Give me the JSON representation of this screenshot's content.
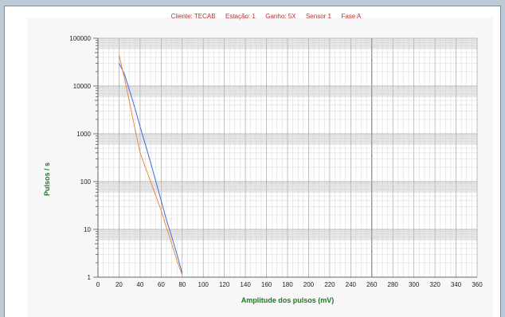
{
  "chart_data": {
    "type": "line",
    "title_parts": [
      "Cliente: TECAB",
      "Estação: 1",
      "Ganho: 5X",
      "Sensor 1",
      "Fase A"
    ],
    "xlabel": "Amplitude dos pulsos (mV)",
    "ylabel": "Pulsos / s",
    "xlim": [
      0,
      360
    ],
    "x_ticks": [
      0,
      20,
      40,
      60,
      80,
      100,
      120,
      140,
      160,
      180,
      200,
      220,
      240,
      260,
      280,
      300,
      320,
      340,
      360
    ],
    "y_scale": "log",
    "ylim": [
      1,
      100000
    ],
    "y_ticks": [
      "1",
      "10",
      "100",
      "1000",
      "10000",
      "100000"
    ],
    "grid": true,
    "colors": {
      "series_1": "#3a6fd8",
      "series_2": "#f08a3c",
      "title": "#b5332a",
      "axis_label": "#1e7a1e"
    },
    "series": [
      {
        "x": [
          20,
          25,
          30,
          35,
          40,
          45,
          50,
          55,
          60,
          65,
          70,
          75,
          80
        ],
        "y": [
          30000,
          18000,
          8000,
          3500,
          1400,
          600,
          250,
          100,
          40,
          16,
          7,
          3,
          1.2
        ]
      },
      {
        "x": [
          20,
          25,
          30,
          35,
          40,
          45,
          50,
          55,
          60,
          65,
          70,
          75,
          80
        ],
        "y": [
          45000,
          15000,
          4500,
          1300,
          400,
          200,
          100,
          50,
          25,
          11,
          5,
          2.2,
          1.1
        ]
      }
    ]
  }
}
